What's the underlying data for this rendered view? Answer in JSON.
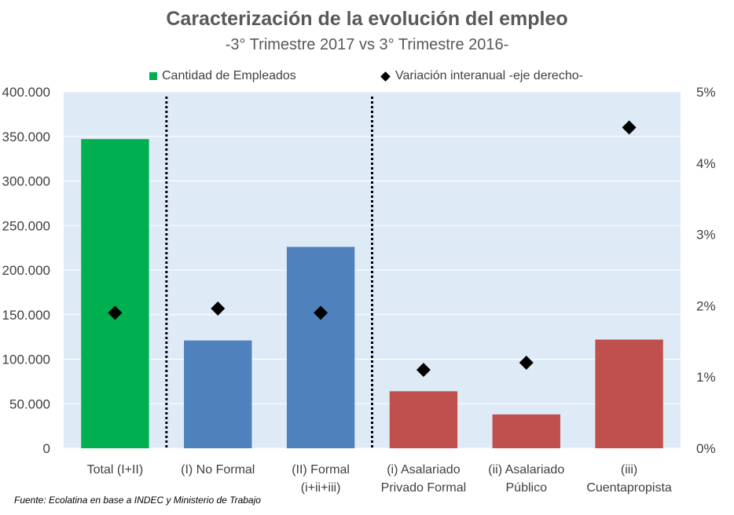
{
  "chart_data": {
    "type": "bar",
    "title": "Caracterización  de la evolución del empleo",
    "subtitle": "-3° Trimestre 2017 vs 3° Trimestre 2016-",
    "categories": [
      [
        "Total (I+II)"
      ],
      [
        "(I) No Formal"
      ],
      [
        "(II) Formal",
        "(i+ii+iii)"
      ],
      [
        "(i) Asalariado",
        "Privado Formal"
      ],
      [
        "(ii) Asalariado",
        "Público"
      ],
      [
        "(iii)",
        "Cuentapropista"
      ]
    ],
    "series": [
      {
        "name": "Cantidad de Empleados",
        "axis": "left",
        "values": [
          347000,
          121000,
          226000,
          64000,
          38000,
          122000
        ],
        "colors": [
          "#00B050",
          "#4F81BD",
          "#4F81BD",
          "#C0504D",
          "#C0504D",
          "#C0504D"
        ]
      },
      {
        "name": "Variación interanual -eje derecho-",
        "axis": "right",
        "marker": "diamond",
        "color": "#000000",
        "values": [
          1.9,
          1.96,
          1.9,
          1.1,
          1.2,
          4.5
        ]
      }
    ],
    "y_left": {
      "min": 0,
      "max": 400000,
      "ticks": [
        "0",
        "50.000",
        "100.000",
        "150.000",
        "200.000",
        "250.000",
        "300.000",
        "350.000",
        "400.000"
      ]
    },
    "y_right": {
      "min": 0,
      "max": 5,
      "ticks": [
        "0%",
        "1%",
        "2%",
        "3%",
        "4%",
        "5%"
      ]
    },
    "separators_after_category": [
      0,
      2
    ],
    "plot_background": "#DEEBF7",
    "grid": true,
    "legend_position": "top"
  },
  "legend": {
    "bars_label": "Cantidad de Empleados",
    "markers_label": "Variación interanual -eje derecho-"
  },
  "source": "Fuente: Ecolatina en base a INDEC y  Ministerio de Trabajo"
}
